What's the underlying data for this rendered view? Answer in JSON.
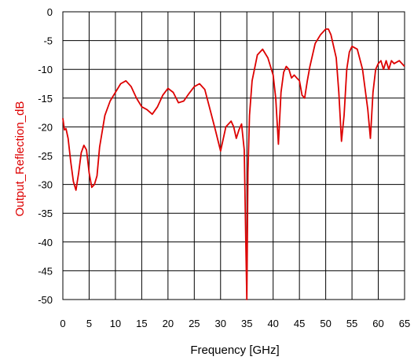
{
  "chart_data": {
    "type": "line",
    "title": "",
    "xlabel": "Frequency [GHz]",
    "ylabel": "Output_Reflection_dB",
    "xlim": [
      0,
      65
    ],
    "ylim": [
      -50,
      0
    ],
    "grid": true,
    "legend": "none",
    "xticks": [
      0,
      5,
      10,
      15,
      20,
      25,
      30,
      35,
      40,
      45,
      50,
      55,
      60,
      65
    ],
    "yticks": [
      0,
      -5,
      -10,
      -15,
      -20,
      -25,
      -30,
      -35,
      -40,
      -45,
      -50
    ],
    "series": [
      {
        "color": "#dd0000",
        "x": [
          0,
          0.3,
          0.6,
          1,
          1.5,
          2,
          2.5,
          3,
          3.5,
          4,
          4.5,
          5,
          5.5,
          6,
          6.5,
          7,
          8,
          9,
          10,
          11,
          12,
          13,
          14,
          15,
          16,
          17,
          18,
          19,
          20,
          21,
          22,
          23,
          24,
          25,
          26,
          27,
          28,
          29,
          30,
          31,
          32,
          32.5,
          33,
          33.5,
          34,
          34.5,
          34.8,
          35,
          35.2,
          35.5,
          36,
          37,
          38,
          39,
          40,
          40.5,
          41,
          41.5,
          42,
          42.5,
          43,
          43.5,
          44,
          44.5,
          45,
          45.5,
          46,
          46.5,
          47,
          48,
          49,
          50,
          50.5,
          51,
          52,
          52.5,
          53,
          53.5,
          54,
          54.5,
          55,
          56,
          57,
          58,
          58.5,
          59,
          59.5,
          60,
          60.5,
          61,
          61.5,
          62,
          62.5,
          63,
          64,
          65
        ],
        "y": [
          -18.5,
          -20.5,
          -20.3,
          -22,
          -26,
          -29.5,
          -31,
          -28,
          -24.5,
          -23.2,
          -24,
          -28,
          -30.5,
          -30,
          -28.5,
          -23.5,
          -18,
          -15.5,
          -14,
          -12.5,
          -12,
          -13,
          -15,
          -16.5,
          -17,
          -17.8,
          -16.5,
          -14.5,
          -13.3,
          -14,
          -15.8,
          -15.5,
          -14.2,
          -13,
          -12.5,
          -13.5,
          -17,
          -20.5,
          -24.2,
          -20,
          -19,
          -20,
          -22,
          -20.5,
          -19.5,
          -24,
          -40,
          -50,
          -28,
          -18,
          -12,
          -7.5,
          -6.5,
          -8,
          -11,
          -15,
          -23,
          -14,
          -10.5,
          -9.5,
          -10,
          -11.5,
          -11,
          -11.5,
          -12,
          -14.5,
          -15,
          -12,
          -9.5,
          -5.5,
          -4,
          -3,
          -3,
          -4,
          -8,
          -14,
          -22.5,
          -18,
          -10,
          -7,
          -6,
          -6.5,
          -10,
          -17,
          -22,
          -14,
          -10,
          -9,
          -8.5,
          -10,
          -8.5,
          -10,
          -8.5,
          -9,
          -8.5,
          -9.5
        ]
      }
    ]
  }
}
